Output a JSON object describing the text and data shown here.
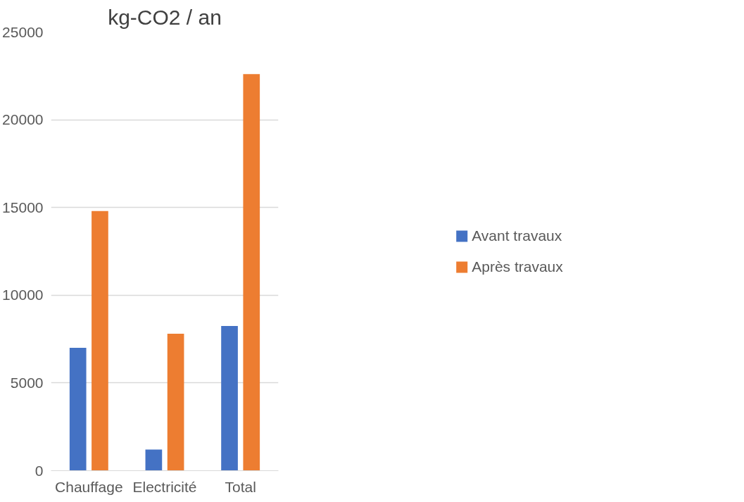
{
  "chart_data": {
    "type": "bar",
    "title": "kg-CO2 / an",
    "categories": [
      "Chauffage",
      "Electricité",
      "Total"
    ],
    "series": [
      {
        "name": "Avant travaux",
        "color": "#4472c4",
        "values": [
          7000,
          1200,
          8250
        ]
      },
      {
        "name": "Après travaux",
        "color": "#ed7d31",
        "values": [
          14800,
          7800,
          22600
        ]
      }
    ],
    "ylim": [
      0,
      25000
    ],
    "yticks": [
      0,
      5000,
      10000,
      15000,
      20000,
      25000
    ],
    "grid": "y",
    "legend": "right"
  }
}
